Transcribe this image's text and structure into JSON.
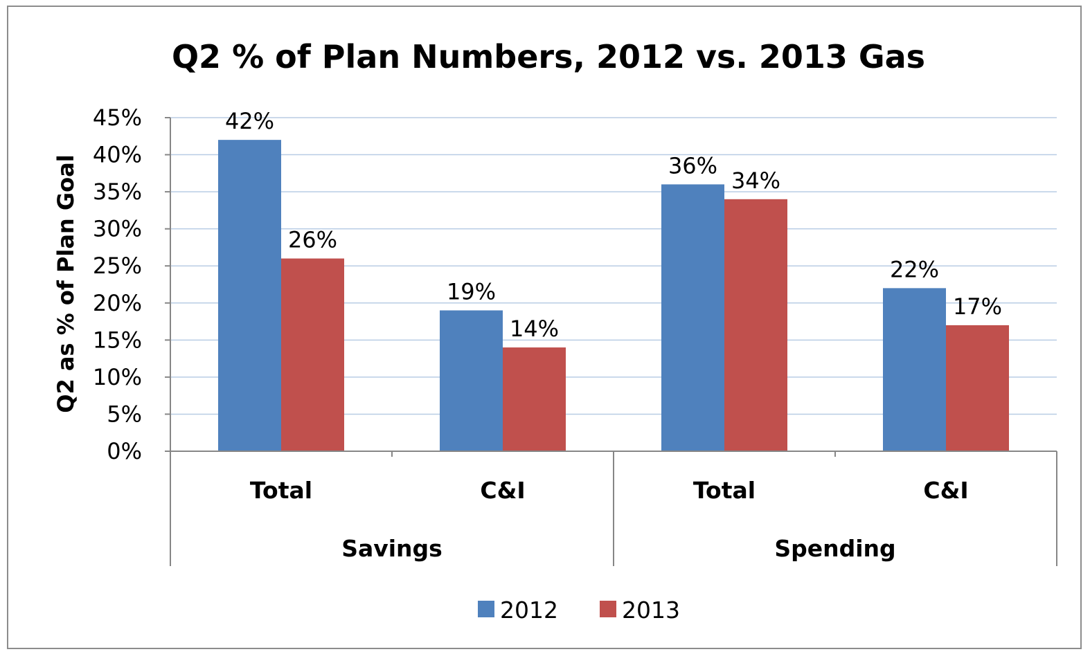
{
  "chart_data": {
    "type": "bar",
    "title": "Q2 % of Plan Numbers, 2012 vs. 2013 Gas",
    "ylabel": "Q2 as % of Plan Goal",
    "xlabel": "",
    "ylim": [
      0,
      45
    ],
    "y_ticks": [
      "0%",
      "5%",
      "10%",
      "15%",
      "20%",
      "25%",
      "30%",
      "35%",
      "40%",
      "45%"
    ],
    "y_tick_values": [
      0,
      5,
      10,
      15,
      20,
      25,
      30,
      35,
      40,
      45
    ],
    "grid": true,
    "legend_position": "bottom",
    "categories": [
      "Total",
      "C&I",
      "Total",
      "C&I"
    ],
    "groups": [
      {
        "label": "Savings",
        "categories": [
          "Total",
          "C&I"
        ]
      },
      {
        "label": "Spending",
        "categories": [
          "Total",
          "C&I"
        ]
      }
    ],
    "series": [
      {
        "name": "2012",
        "color": "#4F81BD",
        "values": [
          42,
          19,
          36,
          22
        ],
        "labels": [
          "42%",
          "19%",
          "36%",
          "22%"
        ]
      },
      {
        "name": "2013",
        "color": "#C0504D",
        "values": [
          26,
          14,
          34,
          17
        ],
        "labels": [
          "26%",
          "14%",
          "34%",
          "17%"
        ]
      }
    ]
  }
}
